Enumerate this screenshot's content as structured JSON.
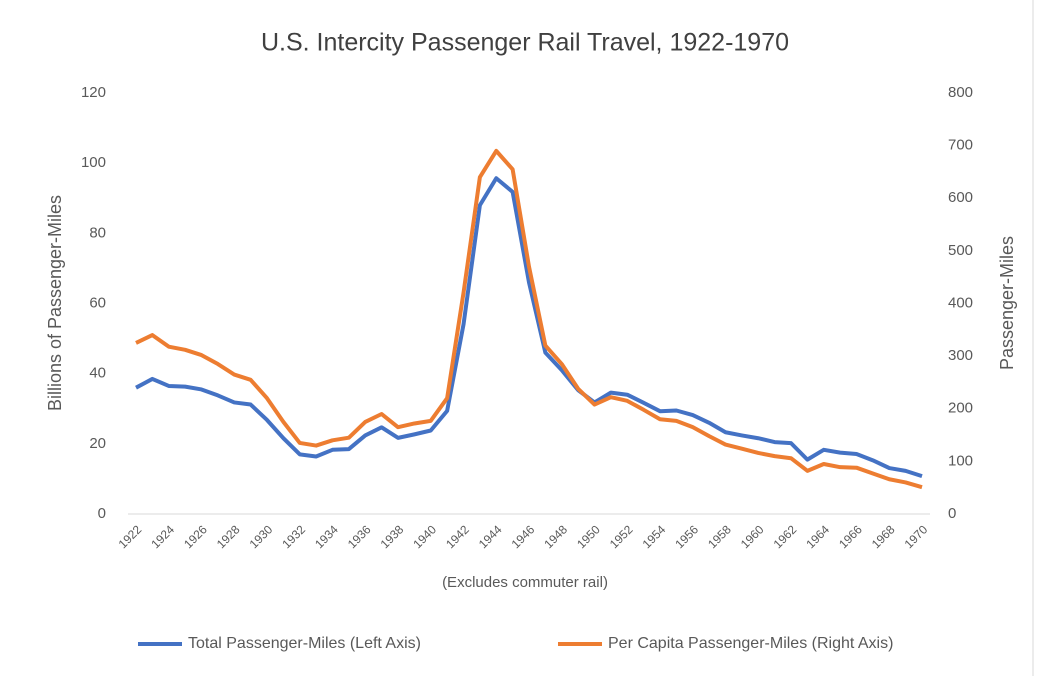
{
  "chart_data": {
    "type": "line",
    "title": "U.S. Intercity Passenger Rail Travel, 1922-1970",
    "x_label": "(Excludes commuter rail)",
    "y_label": "Billions of Passenger-Miles",
    "y2_label": "Passenger-Miles",
    "x": [
      1922,
      1923,
      1924,
      1925,
      1926,
      1927,
      1928,
      1929,
      1930,
      1931,
      1932,
      1933,
      1934,
      1935,
      1936,
      1937,
      1938,
      1939,
      1940,
      1941,
      1942,
      1943,
      1944,
      1945,
      1946,
      1947,
      1948,
      1949,
      1950,
      1951,
      1952,
      1953,
      1954,
      1955,
      1956,
      1957,
      1958,
      1959,
      1960,
      1961,
      1962,
      1963,
      1964,
      1965,
      1966,
      1967,
      1968,
      1969,
      1970
    ],
    "xlim": [
      1922,
      1970
    ],
    "xticks": [
      1922,
      1924,
      1926,
      1928,
      1930,
      1932,
      1934,
      1936,
      1938,
      1940,
      1942,
      1944,
      1946,
      1948,
      1950,
      1952,
      1954,
      1956,
      1958,
      1960,
      1962,
      1964,
      1966,
      1968,
      1970
    ],
    "ylim": [
      0,
      120
    ],
    "yticks": [
      0,
      20,
      40,
      60,
      80,
      100,
      120
    ],
    "y2lim": [
      0,
      800
    ],
    "y2ticks": [
      0,
      100,
      200,
      300,
      400,
      500,
      600,
      700,
      800
    ],
    "grid": false,
    "legend": "bottom",
    "series": [
      {
        "name": "Total Passenger-Miles (Left Axis)",
        "color": "#4472c4",
        "axis": "y",
        "values": [
          36,
          38.5,
          36.5,
          36.3,
          35.5,
          33.8,
          31.8,
          31.2,
          26.8,
          21.6,
          17,
          16.4,
          18.3,
          18.5,
          22.4,
          24.7,
          21.7,
          22.7,
          23.8,
          29.4,
          54,
          88,
          95.7,
          91.8,
          66,
          46,
          41,
          35.3,
          31.8,
          34.6,
          34,
          31.7,
          29.3,
          29.5,
          28.2,
          26,
          23.3,
          22.4,
          21.6,
          20.5,
          20.2,
          15.5,
          18.3,
          17.5,
          17.1,
          15.3,
          13.1,
          12.3,
          10.8
        ]
      },
      {
        "name": "Per Capita Passenger-Miles (Right Axis)",
        "color": "#ed7d31",
        "axis": "y2",
        "values": [
          325,
          340,
          318,
          312,
          302,
          285,
          265,
          255,
          220,
          175,
          135,
          130,
          140,
          145,
          175,
          190,
          165,
          172,
          177,
          220,
          420,
          640,
          690,
          655,
          470,
          320,
          285,
          238,
          208,
          222,
          215,
          198,
          180,
          177,
          165,
          148,
          132,
          124,
          116,
          110,
          106,
          82,
          95,
          89,
          88,
          77,
          66,
          60,
          51
        ]
      }
    ]
  }
}
